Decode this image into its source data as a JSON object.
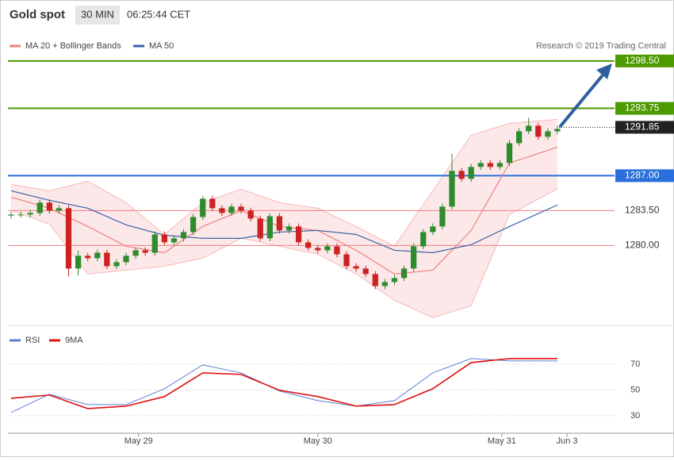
{
  "header": {
    "title": "Gold spot",
    "interval": "30 MIN",
    "time": "06:25:44 CET",
    "credit": "Research © 2019 Trading Central"
  },
  "chart_data": [
    {
      "type": "candlestick",
      "ylim": [
        1272,
        1301.43
      ],
      "xlim": [
        -0.33,
        62.96
      ],
      "up_color": "#2e8b2e",
      "down_color": "#cc2222",
      "open": [
        1283.0,
        1283.1,
        1283.1,
        1283.26,
        1284.3,
        1283.5,
        1283.74,
        1277.69,
        1278.97,
        1278.73,
        1279.28,
        1277.93,
        1278.33,
        1278.97,
        1279.52,
        1279.28,
        1281.11,
        1280.32,
        1280.72,
        1281.35,
        1282.86,
        1284.69,
        1283.74,
        1283.26,
        1283.9,
        1283.5,
        1282.7,
        1280.72,
        1282.94,
        1281.51,
        1281.91,
        1280.32,
        1279.76,
        1279.52,
        1279.92,
        1279.12,
        1277.93,
        1277.69,
        1277.14,
        1275.94,
        1276.34,
        1276.74,
        1277.69,
        1279.92,
        1281.35,
        1281.91,
        1283.9,
        1287.48,
        1286.68,
        1287.88,
        1288.27,
        1287.88,
        1288.27,
        1290.26,
        1291.45,
        1292.01,
        1290.9,
        1291.45
      ],
      "high": [
        1283.4,
        1283.4,
        1283.56,
        1284.6,
        1284.6,
        1284.04,
        1284.04,
        1279.5,
        1279.27,
        1279.58,
        1279.58,
        1278.63,
        1279.27,
        1279.82,
        1279.82,
        1281.41,
        1281.41,
        1281.02,
        1281.65,
        1283.16,
        1284.99,
        1284.99,
        1284.04,
        1284.2,
        1284.2,
        1283.8,
        1283.0,
        1283.24,
        1283.24,
        1282.21,
        1282.21,
        1280.62,
        1280.06,
        1280.22,
        1280.22,
        1279.42,
        1278.23,
        1277.99,
        1277.44,
        1276.64,
        1277.04,
        1277.99,
        1280.22,
        1281.65,
        1282.21,
        1284.2,
        1289.2,
        1287.78,
        1288.18,
        1288.57,
        1288.57,
        1288.57,
        1290.56,
        1291.75,
        1292.8,
        1292.31,
        1291.75,
        1291.99
      ],
      "low": [
        1282.7,
        1282.8,
        1282.8,
        1282.96,
        1283.2,
        1283.2,
        1276.9,
        1277.0,
        1278.43,
        1278.43,
        1277.63,
        1277.63,
        1278.03,
        1278.67,
        1278.98,
        1278.98,
        1280.02,
        1280.02,
        1280.42,
        1281.05,
        1282.56,
        1283.44,
        1282.96,
        1282.96,
        1283.2,
        1282.4,
        1280.42,
        1280.42,
        1281.21,
        1281.21,
        1280.02,
        1279.46,
        1279.22,
        1279.22,
        1278.82,
        1277.63,
        1277.39,
        1276.84,
        1275.64,
        1275.64,
        1276.04,
        1276.44,
        1277.39,
        1279.62,
        1281.05,
        1281.61,
        1283.6,
        1286.38,
        1286.38,
        1287.58,
        1287.58,
        1287.58,
        1287.97,
        1289.96,
        1291.15,
        1290.6,
        1290.6,
        1291.15
      ],
      "close": [
        1283.1,
        1283.1,
        1283.26,
        1284.3,
        1283.5,
        1283.74,
        1277.69,
        1278.97,
        1278.73,
        1279.28,
        1277.93,
        1278.33,
        1278.97,
        1279.52,
        1279.28,
        1281.11,
        1280.32,
        1280.72,
        1281.35,
        1282.86,
        1284.69,
        1283.74,
        1283.26,
        1283.9,
        1283.5,
        1282.7,
        1280.72,
        1282.94,
        1281.51,
        1281.91,
        1280.32,
        1279.76,
        1279.52,
        1279.92,
        1279.12,
        1277.93,
        1277.69,
        1277.14,
        1275.94,
        1276.34,
        1276.74,
        1277.69,
        1279.92,
        1281.35,
        1281.91,
        1283.9,
        1287.48,
        1286.68,
        1287.88,
        1288.27,
        1287.88,
        1288.27,
        1290.26,
        1291.45,
        1292.01,
        1290.9,
        1291.45,
        1291.69
      ],
      "lines_x": [
        0,
        4,
        8,
        12,
        16,
        20,
        24,
        28,
        32,
        36,
        40,
        44,
        48,
        52,
        57
      ],
      "series": [
        {
          "name": "MA 20 + Bollinger Bands",
          "color": "#f08080",
          "values": [
            1284.85,
            1283.74,
            1281.91,
            1279.92,
            1279.28,
            1281.91,
            1283.5,
            1281.91,
            1281.51,
            1279.52,
            1277.14,
            1277.53,
            1281.51,
            1288.27,
            1289.86
          ],
          "bands": {
            "upper": [
              1286.13,
              1285.49,
              1286.44,
              1284.3,
              1281.11,
              1284.3,
              1285.65,
              1284.3,
              1283.74,
              1281.91,
              1279.92,
              1285.49,
              1291.06,
              1292.25,
              1292.65
            ],
            "lower": [
              1283.5,
              1282.15,
              1277.14,
              1277.53,
              1277.93,
              1278.73,
              1280.72,
              1279.92,
              1279.12,
              1277.14,
              1274.51,
              1272.76,
              1273.95,
              1283.1,
              1285.68
            ]
          }
        },
        {
          "name": "MA 50",
          "color": "#3a62a8",
          "values": [
            1285.49,
            1284.53,
            1283.74,
            1282.07,
            1281.03,
            1280.72,
            1280.72,
            1281.35,
            1281.51,
            1281.11,
            1279.52,
            1279.28,
            1280.08,
            1281.91,
            1284.06
          ]
        }
      ],
      "levels": [
        {
          "value": 1298.5,
          "label": "1298.50"
        },
        {
          "value": 1293.75,
          "label": "1293.75"
        },
        1291.85,
        {
          "value": 1287,
          "label": "1287.00"
        },
        {
          "value": 1283.5,
          "label": "1283.50"
        },
        {
          "value": 1280,
          "label": "1280.00"
        }
      ],
      "level_colors": [
        "#4c9a00",
        "#4c9a00",
        "#222222",
        "#2a6fdb",
        "#f08080",
        "#f08080"
      ]
    },
    {
      "type": "line",
      "ylim": [
        17,
        97
      ],
      "xlim": [
        -0.33,
        62.96
      ],
      "yticks": [
        30,
        50,
        70
      ],
      "xticks": [
        {
          "value": 13.3,
          "label": "May 29"
        },
        {
          "value": 32,
          "label": "May 30"
        },
        {
          "value": 51.2,
          "label": "May 31"
        },
        {
          "value": 58,
          "label": "Jun 3"
        }
      ],
      "x": [
        0,
        4,
        8,
        12,
        16,
        20,
        24,
        28,
        32,
        36,
        40,
        44,
        48,
        52,
        57
      ],
      "series": [
        {
          "name": "RSI",
          "color": "#5b7fd6",
          "values": [
            32.5,
            46.6,
            38.6,
            38.6,
            50.9,
            69.4,
            63.2,
            49.1,
            41.7,
            37.4,
            41.7,
            63.2,
            74.3,
            72.5,
            72.5
          ]
        },
        {
          "name": "9MA",
          "color": "#e01010",
          "values": [
            43.5,
            46.0,
            35.5,
            37.4,
            44.8,
            63.2,
            62.0,
            49.7,
            44.8,
            37.4,
            38.6,
            50.9,
            71.2,
            74.3,
            74.3
          ]
        }
      ]
    }
  ]
}
